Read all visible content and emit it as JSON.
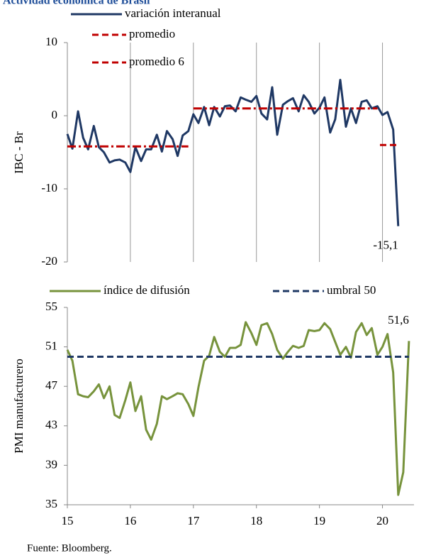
{
  "chart_data": [
    {
      "type": "line",
      "title": "Actividad económica de Brasil",
      "ylabel": "IBC - Br",
      "xlim": [
        15,
        20.5
      ],
      "xgrid": [
        16,
        17,
        18,
        19,
        20
      ],
      "ylim": [
        -20,
        10
      ],
      "yticks": [
        -20,
        -10,
        0,
        10
      ],
      "series": [
        {
          "name": "variación interanual",
          "color": "#1f3864",
          "dash": "solid",
          "x": [
            15,
            15.08,
            15.17,
            15.25,
            15.33,
            15.42,
            15.5,
            15.58,
            15.67,
            15.75,
            15.83,
            15.92,
            16,
            16.08,
            16.17,
            16.25,
            16.33,
            16.42,
            16.5,
            16.58,
            16.67,
            16.75,
            16.83,
            16.92,
            17,
            17.08,
            17.17,
            17.25,
            17.33,
            17.42,
            17.5,
            17.58,
            17.67,
            17.75,
            17.83,
            17.92,
            18,
            18.08,
            18.17,
            18.25,
            18.33,
            18.42,
            18.5,
            18.58,
            18.67,
            18.75,
            18.83,
            18.92,
            19,
            19.08,
            19.17,
            19.25,
            19.33,
            19.42,
            19.5,
            19.58,
            19.67,
            19.75,
            19.83,
            19.92,
            20,
            20.08,
            20.17,
            20.25
          ],
          "values": [
            -2.5,
            -4.5,
            0.6,
            -3.0,
            -4.6,
            -1.4,
            -4.3,
            -5.0,
            -6.4,
            -6.1,
            -6.0,
            -6.4,
            -7.7,
            -4.3,
            -6.2,
            -4.6,
            -4.6,
            -2.6,
            -4.9,
            -2.1,
            -3.2,
            -5.5,
            -2.7,
            -2.1,
            0.2,
            -1.0,
            1.2,
            -1.3,
            1.2,
            -0.1,
            1.3,
            1.4,
            0.6,
            2.5,
            2.2,
            1.9,
            2.7,
            0.3,
            -0.5,
            3.9,
            -2.6,
            1.5,
            2.0,
            2.4,
            0.6,
            2.8,
            1.9,
            0.3,
            1.1,
            2.5,
            -2.3,
            -0.5,
            4.9,
            -1.5,
            1.0,
            -1.0,
            1.9,
            2.1,
            1.0,
            1.3,
            0.1,
            0.5,
            -1.9,
            -15.1
          ],
          "last_label": "-15,1"
        },
        {
          "name": "promedio",
          "color": "#c00000",
          "dash": "dashdot",
          "x": [
            15,
            16.92,
            16.96,
            17,
            19.92
          ],
          "values": [
            -4.2,
            -4.2,
            null,
            1.0,
            1.0
          ]
        },
        {
          "name": "promedio 6",
          "color": "#c00000",
          "dash": "dashed",
          "x": [
            19.96,
            20.25
          ],
          "values": [
            -4.0,
            -4.0
          ]
        }
      ]
    },
    {
      "type": "line",
      "ylabel": "PMI manufacturero",
      "xlim": [
        15,
        20.5
      ],
      "xticks": [
        15,
        16,
        17,
        18,
        19,
        20
      ],
      "ylim": [
        35,
        55
      ],
      "yticks": [
        35,
        39,
        43,
        47,
        51,
        55
      ],
      "series": [
        {
          "name": "índice de difusión",
          "color": "#77933c",
          "dash": "solid",
          "x": [
            15,
            15.08,
            15.17,
            15.25,
            15.33,
            15.42,
            15.5,
            15.58,
            15.67,
            15.75,
            15.83,
            15.92,
            16,
            16.08,
            16.17,
            16.25,
            16.33,
            16.42,
            16.5,
            16.58,
            16.67,
            16.75,
            16.83,
            16.92,
            17,
            17.08,
            17.17,
            17.25,
            17.33,
            17.42,
            17.5,
            17.58,
            17.67,
            17.75,
            17.83,
            17.92,
            18,
            18.08,
            18.17,
            18.25,
            18.33,
            18.42,
            18.5,
            18.58,
            18.67,
            18.75,
            18.83,
            18.92,
            19,
            19.08,
            19.17,
            19.25,
            19.33,
            19.42,
            19.5,
            19.58,
            19.67,
            19.75,
            19.83,
            19.92,
            20,
            20.08,
            20.17,
            20.25,
            20.33,
            20.42
          ],
          "values": [
            50.7,
            49.6,
            46.2,
            46.0,
            45.9,
            46.5,
            47.2,
            45.8,
            47.0,
            44.1,
            43.8,
            45.6,
            47.4,
            44.5,
            46.0,
            42.6,
            41.6,
            43.2,
            46.0,
            45.7,
            46.0,
            46.3,
            46.2,
            45.2,
            44.0,
            46.9,
            49.6,
            50.1,
            52.0,
            50.5,
            50.0,
            50.9,
            50.9,
            51.2,
            53.5,
            52.4,
            51.2,
            53.2,
            53.4,
            52.3,
            50.7,
            49.8,
            50.5,
            51.1,
            50.9,
            51.1,
            52.7,
            52.6,
            52.7,
            53.4,
            52.8,
            51.5,
            50.2,
            51.0,
            49.9,
            52.5,
            53.4,
            52.2,
            52.9,
            50.2,
            51.0,
            52.3,
            48.4,
            36.0,
            38.3,
            51.6
          ],
          "last_label": "51,6"
        },
        {
          "name": "umbral 50",
          "color": "#1f3864",
          "dash": "dashed",
          "x": [
            15,
            20.42
          ],
          "values": [
            50,
            50
          ]
        }
      ]
    }
  ],
  "source": "Fuente: Bloomberg."
}
